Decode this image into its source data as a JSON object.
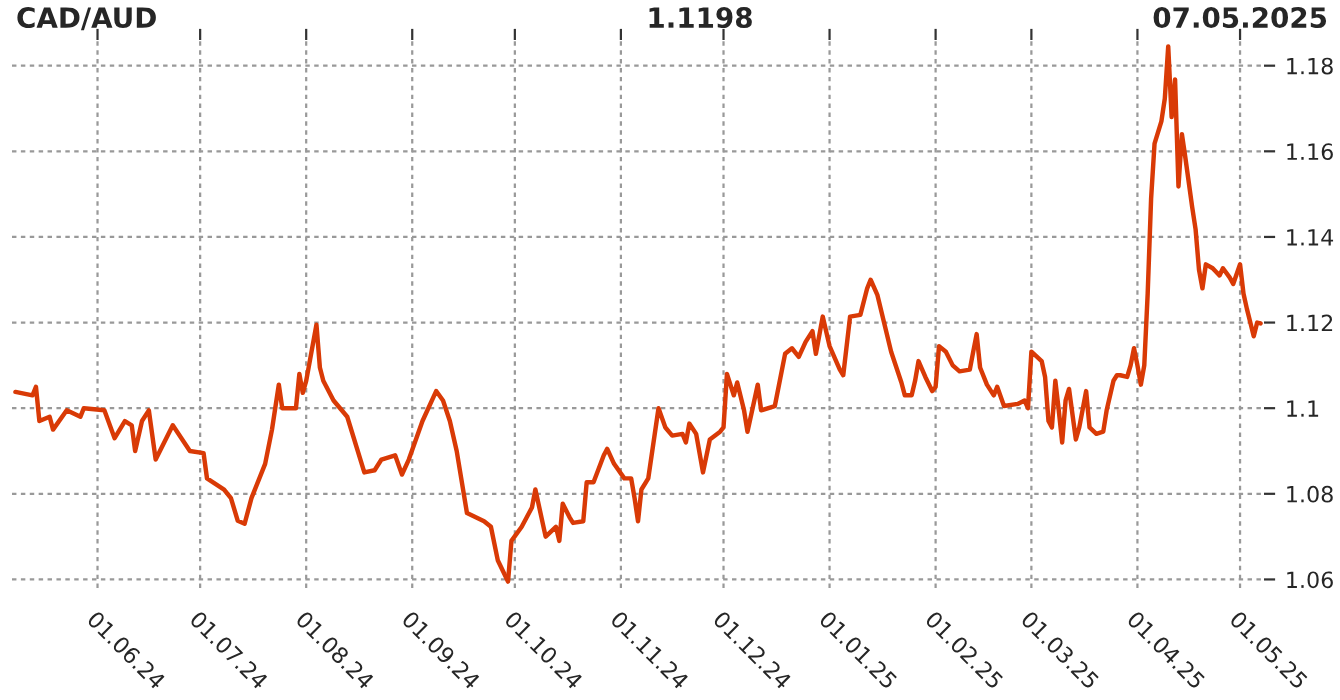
{
  "chart_data": {
    "type": "line",
    "title": "CAD/AUD",
    "annotations": [
      "1.1198",
      "07.05.2025"
    ],
    "x": [
      "2024-05-08",
      "2024-05-13",
      "2024-05-14",
      "2024-05-15",
      "2024-05-18",
      "2024-05-19",
      "2024-05-23",
      "2024-05-27",
      "2024-05-28",
      "2024-06-03",
      "2024-06-06",
      "2024-06-09",
      "2024-06-11",
      "2024-06-12",
      "2024-06-14",
      "2024-06-16",
      "2024-06-18",
      "2024-06-23",
      "2024-06-28",
      "2024-07-02",
      "2024-07-03",
      "2024-07-08",
      "2024-07-10",
      "2024-07-12",
      "2024-07-14",
      "2024-07-16",
      "2024-07-20",
      "2024-07-22",
      "2024-07-24",
      "2024-07-25",
      "2024-07-29",
      "2024-07-30",
      "2024-07-31",
      "2024-08-01",
      "2024-08-04",
      "2024-08-05",
      "2024-08-06",
      "2024-08-09",
      "2024-08-13",
      "2024-08-18",
      "2024-08-21",
      "2024-08-23",
      "2024-08-27",
      "2024-08-29",
      "2024-08-31",
      "2024-09-04",
      "2024-09-08",
      "2024-09-10",
      "2024-09-12",
      "2024-09-14",
      "2024-09-17",
      "2024-09-22",
      "2024-09-24",
      "2024-09-26",
      "2024-09-29",
      "2024-09-30",
      "2024-10-03",
      "2024-10-06",
      "2024-10-07",
      "2024-10-10",
      "2024-10-13",
      "2024-10-14",
      "2024-10-15",
      "2024-10-17",
      "2024-10-18",
      "2024-10-21",
      "2024-10-22",
      "2024-10-24",
      "2024-10-27",
      "2024-10-28",
      "2024-10-30",
      "2024-11-02",
      "2024-11-04",
      "2024-11-05",
      "2024-11-06",
      "2024-11-07",
      "2024-11-09",
      "2024-11-12",
      "2024-11-14",
      "2024-11-16",
      "2024-11-19",
      "2024-11-20",
      "2024-11-21",
      "2024-11-23",
      "2024-11-25",
      "2024-11-27",
      "2024-11-30",
      "2024-12-01",
      "2024-12-02",
      "2024-12-04",
      "2024-12-05",
      "2024-12-07",
      "2024-12-08",
      "2024-12-10",
      "2024-12-11",
      "2024-12-12",
      "2024-12-16",
      "2024-12-19",
      "2024-12-21",
      "2024-12-23",
      "2024-12-25",
      "2024-12-27",
      "2024-12-28",
      "2024-12-30",
      "2025-01-01",
      "2025-01-04",
      "2025-01-05",
      "2025-01-07",
      "2025-01-10",
      "2025-01-12",
      "2025-01-13",
      "2025-01-15",
      "2025-01-19",
      "2025-01-22",
      "2025-01-23",
      "2025-01-25",
      "2025-01-26",
      "2025-01-27",
      "2025-01-29",
      "2025-01-31",
      "2025-02-01",
      "2025-02-02",
      "2025-02-04",
      "2025-02-06",
      "2025-02-08",
      "2025-02-11",
      "2025-02-12",
      "2025-02-13",
      "2025-02-14",
      "2025-02-16",
      "2025-02-18",
      "2025-02-19",
      "2025-02-21",
      "2025-02-25",
      "2025-02-27",
      "2025-02-28",
      "2025-03-01",
      "2025-03-04",
      "2025-03-05",
      "2025-03-06",
      "2025-03-07",
      "2025-03-08",
      "2025-03-09",
      "2025-03-10",
      "2025-03-11",
      "2025-03-12",
      "2025-03-14",
      "2025-03-15",
      "2025-03-17",
      "2025-03-18",
      "2025-03-20",
      "2025-03-22",
      "2025-03-23",
      "2025-03-25",
      "2025-03-26",
      "2025-03-27",
      "2025-03-29",
      "2025-03-30",
      "2025-03-31",
      "2025-04-01",
      "2025-04-02",
      "2025-04-03",
      "2025-04-04",
      "2025-04-05",
      "2025-04-06",
      "2025-04-08",
      "2025-04-09",
      "2025-04-10",
      "2025-04-11",
      "2025-04-12",
      "2025-04-13",
      "2025-04-14",
      "2025-04-15",
      "2025-04-17",
      "2025-04-18",
      "2025-04-19",
      "2025-04-20",
      "2025-04-21",
      "2025-04-23",
      "2025-04-25",
      "2025-04-26",
      "2025-04-28",
      "2025-04-29",
      "2025-05-01",
      "2025-05-02",
      "2025-05-03",
      "2025-05-04",
      "2025-05-05",
      "2025-05-06",
      "2025-05-07"
    ],
    "series": [
      {
        "color": "#d93a06",
        "values": [
          1.1038,
          1.103,
          1.105,
          1.097,
          1.098,
          1.095,
          1.0995,
          1.098,
          1.1,
          1.0995,
          1.093,
          1.097,
          1.096,
          1.09,
          1.097,
          1.0995,
          1.088,
          1.096,
          1.09,
          1.0895,
          1.0836,
          1.081,
          1.079,
          1.0737,
          1.073,
          1.079,
          1.087,
          1.095,
          1.1055,
          1.1,
          1.1,
          1.108,
          1.1036,
          1.1064,
          1.1195,
          1.1095,
          1.1064,
          1.1018,
          1.098,
          1.085,
          1.0855,
          1.088,
          1.089,
          1.0845,
          1.088,
          1.097,
          1.104,
          1.1018,
          1.097,
          1.09,
          1.0755,
          1.0736,
          1.0723,
          1.0645,
          1.0595,
          1.069,
          1.0723,
          1.0768,
          1.081,
          1.07,
          1.0723,
          1.069,
          1.0777,
          1.0745,
          1.0732,
          1.0736,
          1.0827,
          1.0827,
          1.089,
          1.0905,
          1.087,
          1.0836,
          1.0836,
          1.079,
          1.0736,
          1.081,
          1.0836,
          1.1,
          1.0955,
          1.0936,
          1.094,
          1.092,
          1.0964,
          1.094,
          1.085,
          1.0927,
          1.0945,
          1.0955,
          1.108,
          1.103,
          1.106,
          1.0995,
          1.0945,
          1.1018,
          1.1055,
          1.0995,
          1.1005,
          1.1127,
          1.114,
          1.112,
          1.1155,
          1.118,
          1.1127,
          1.1214,
          1.1145,
          1.109,
          1.1077,
          1.1214,
          1.1218,
          1.128,
          1.13,
          1.1264,
          1.1132,
          1.106,
          1.103,
          1.103,
          1.1064,
          1.111,
          1.1073,
          1.104,
          1.105,
          1.1145,
          1.1132,
          1.11,
          1.1086,
          1.109,
          1.1132,
          1.1173,
          1.1095,
          1.1055,
          1.103,
          1.105,
          1.1005,
          1.101,
          1.1018,
          1.1,
          1.1132,
          1.111,
          1.1073,
          1.097,
          1.0955,
          1.1064,
          1.0995,
          1.092,
          1.1018,
          1.1045,
          1.0927,
          1.0955,
          1.104,
          1.0955,
          1.094,
          1.0945,
          1.0995,
          1.1064,
          1.1077,
          1.1077,
          1.1073,
          1.11,
          1.114,
          1.11,
          1.1055,
          1.11,
          1.1268,
          1.149,
          1.1618,
          1.167,
          1.1723,
          1.1845,
          1.168,
          1.1768,
          1.1518,
          1.164,
          1.1586,
          1.147,
          1.1418,
          1.1323,
          1.128,
          1.1336,
          1.1327,
          1.131,
          1.1327,
          1.1305,
          1.129,
          1.1336,
          1.1268,
          1.1232,
          1.12,
          1.1168,
          1.12,
          1.1198
        ]
      }
    ],
    "xlim": [
      "2024-05-07",
      "2025-05-08"
    ],
    "xticks": [
      {
        "value": "2024-06-01",
        "label": "01.06.24"
      },
      {
        "value": "2024-07-01",
        "label": "01.07.24"
      },
      {
        "value": "2024-08-01",
        "label": "01.08.24"
      },
      {
        "value": "2024-09-01",
        "label": "01.09.24"
      },
      {
        "value": "2024-10-01",
        "label": "01.10.24"
      },
      {
        "value": "2024-11-01",
        "label": "01.11.24"
      },
      {
        "value": "2024-12-01",
        "label": "01.12.24"
      },
      {
        "value": "2025-01-01",
        "label": "01.01.25"
      },
      {
        "value": "2025-02-01",
        "label": "01.02.25"
      },
      {
        "value": "2025-03-01",
        "label": "01.03.25"
      },
      {
        "value": "2025-04-01",
        "label": "01.04.25"
      },
      {
        "value": "2025-05-01",
        "label": "01.05.25"
      }
    ],
    "ylim": [
      1.058,
      1.186
    ],
    "yticks": [
      1.06,
      1.08,
      1.1,
      1.12,
      1.14,
      1.16,
      1.18
    ],
    "grid": true,
    "line_style": "solid",
    "marker": "none"
  }
}
